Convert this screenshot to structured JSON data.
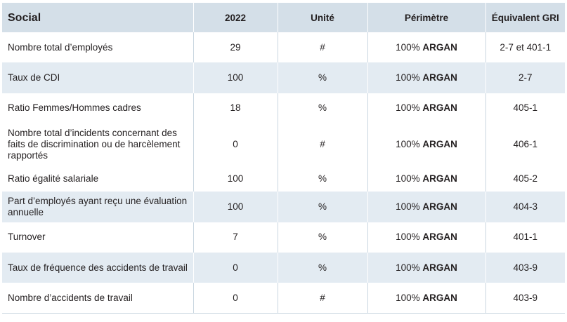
{
  "header": {
    "col1": "Social",
    "col2": "2022",
    "col3": "Unité",
    "col4": "Périmètre",
    "col5": "Équivalent GRI"
  },
  "rows": [
    {
      "label": "Nombre total d’employés",
      "value": "29",
      "unit": "#",
      "scope_pct": "100%",
      "scope_name": "ARGAN",
      "gri": "2-7 et 401-1"
    },
    {
      "label": "Taux de CDI",
      "value": "100",
      "unit": "%",
      "scope_pct": "100%",
      "scope_name": "ARGAN",
      "gri": "2-7"
    },
    {
      "label": "Ratio Femmes/Hommes cadres",
      "value": "18",
      "unit": "%",
      "scope_pct": "100%",
      "scope_name": "ARGAN",
      "gri": "405-1"
    },
    {
      "label": "Nombre total d’incidents concernant des faits de discrimination ou de harcèlement rapportés",
      "value": "0",
      "unit": "#",
      "scope_pct": "100%",
      "scope_name": "ARGAN",
      "gri": "406-1"
    },
    {
      "label": "Ratio égalité salariale",
      "value": "100",
      "unit": "%",
      "scope_pct": "100%",
      "scope_name": "ARGAN",
      "gri": "405-2"
    },
    {
      "label": "Part d’employés ayant reçu une évaluation annuelle",
      "value": "100",
      "unit": "%",
      "scope_pct": "100%",
      "scope_name": "ARGAN",
      "gri": "404-3"
    },
    {
      "label": "Turnover",
      "value": "7",
      "unit": "%",
      "scope_pct": "100%",
      "scope_name": "ARGAN",
      "gri": "401-1"
    },
    {
      "label": "Taux de fréquence des accidents de travail",
      "value": "0",
      "unit": "%",
      "scope_pct": "100%",
      "scope_name": "ARGAN",
      "gri": "403-9"
    },
    {
      "label": "Nombre d’accidents de travail",
      "value": "0",
      "unit": "#",
      "scope_pct": "100%",
      "scope_name": "ARGAN",
      "gri": "403-9"
    }
  ]
}
